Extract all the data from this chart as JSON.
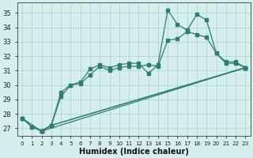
{
  "xlabel": "Humidex (Indice chaleur)",
  "bg_color": "#d5efef",
  "line_color": "#2e7d6e",
  "grid_color": "#b8d8d8",
  "xlim": [
    -0.5,
    23.5
  ],
  "ylim": [
    26.5,
    35.7
  ],
  "xticks": [
    0,
    1,
    2,
    3,
    4,
    5,
    6,
    7,
    8,
    9,
    10,
    11,
    12,
    13,
    14,
    15,
    16,
    17,
    18,
    19,
    20,
    21,
    22,
    23
  ],
  "yticks": [
    27,
    28,
    29,
    30,
    31,
    32,
    33,
    34,
    35
  ],
  "line1": {
    "x": [
      0,
      1,
      2,
      3,
      4,
      5,
      6,
      7,
      8,
      9,
      10,
      11,
      12,
      13,
      14,
      15,
      16,
      17,
      18,
      19,
      20,
      21,
      22,
      23
    ],
    "y": [
      27.7,
      27.1,
      26.8,
      27.2,
      29.5,
      30.0,
      30.2,
      31.1,
      31.4,
      31.2,
      31.4,
      31.5,
      31.5,
      30.8,
      31.4,
      35.2,
      34.2,
      33.8,
      34.9,
      34.5,
      32.2,
      31.6,
      31.6,
      31.2
    ]
  },
  "line2": {
    "x": [
      0,
      1,
      2,
      3,
      4,
      5,
      6,
      7,
      8,
      9,
      10,
      11,
      12,
      13,
      14,
      15,
      16,
      17,
      18,
      19,
      20,
      21,
      22,
      23
    ],
    "y": [
      27.7,
      27.1,
      26.8,
      27.2,
      29.2,
      30.0,
      30.1,
      30.7,
      31.3,
      31.0,
      31.2,
      31.3,
      31.3,
      31.4,
      31.3,
      33.1,
      33.2,
      33.7,
      33.5,
      33.3,
      32.2,
      31.5,
      31.5,
      31.2
    ]
  },
  "fan1": {
    "x": [
      0,
      2,
      3,
      23
    ],
    "y": [
      27.7,
      26.8,
      27.2,
      31.2
    ]
  },
  "fan2": {
    "x": [
      2,
      3,
      23
    ],
    "y": [
      26.8,
      27.2,
      31.2
    ]
  },
  "fan3": {
    "x": [
      2,
      23
    ],
    "y": [
      26.8,
      31.2
    ]
  }
}
